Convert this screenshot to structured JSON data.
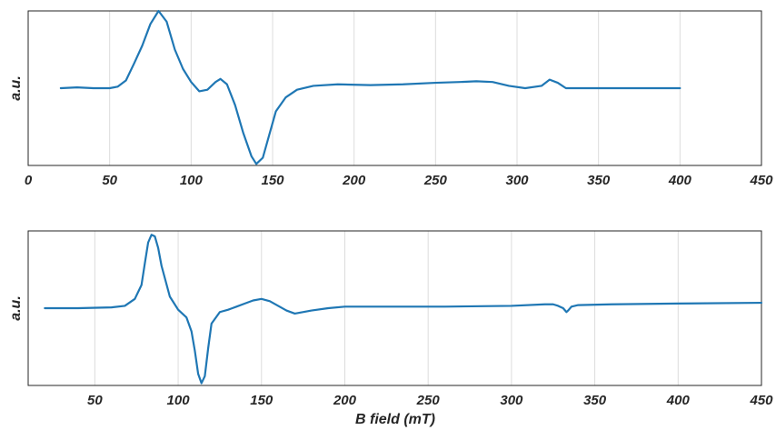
{
  "chart_data": [
    {
      "type": "line",
      "title": "",
      "xlabel": "",
      "ylabel": "a.u.",
      "xlim": [
        0,
        450
      ],
      "ylim": [
        -1.0,
        1.0
      ],
      "xticks": [
        0,
        50,
        100,
        150,
        200,
        250,
        300,
        350,
        400,
        450
      ],
      "xtick_labels": [
        "0",
        "50",
        "100",
        "150",
        "200",
        "250",
        "300",
        "350",
        "400",
        "450"
      ],
      "grid": "vertical",
      "color": "#1f77b4",
      "series": [
        {
          "x": [
            20,
            30,
            40,
            50,
            55,
            60,
            65,
            70,
            75,
            80,
            85,
            90,
            95,
            100,
            105,
            110,
            115,
            118,
            122,
            127,
            132,
            137,
            140,
            144,
            148,
            152,
            158,
            165,
            175,
            190,
            210,
            230,
            250,
            265,
            275,
            285,
            295,
            305,
            315,
            320,
            325,
            330,
            340,
            360,
            380,
            400
          ],
          "y": [
            0.0,
            0.01,
            0.0,
            0.0,
            0.02,
            0.1,
            0.32,
            0.55,
            0.83,
            1.0,
            0.86,
            0.5,
            0.25,
            0.08,
            -0.04,
            -0.02,
            0.08,
            0.12,
            0.05,
            -0.22,
            -0.58,
            -0.88,
            -0.98,
            -0.9,
            -0.6,
            -0.3,
            -0.12,
            -0.02,
            0.03,
            0.05,
            0.04,
            0.05,
            0.07,
            0.08,
            0.09,
            0.08,
            0.03,
            0.0,
            0.03,
            0.11,
            0.07,
            0.0,
            0.0,
            0.0,
            0.0,
            0.0
          ]
        }
      ]
    },
    {
      "type": "line",
      "title": "",
      "xlabel": "B field (mT)",
      "ylabel": "a.u.",
      "xlim": [
        10,
        450
      ],
      "ylim": [
        -1.0,
        1.0
      ],
      "xticks": [
        50,
        100,
        150,
        200,
        250,
        300,
        350,
        400,
        450
      ],
      "xtick_labels": [
        "50",
        "100",
        "150",
        "200",
        "250",
        "300",
        "350",
        "400",
        "450"
      ],
      "grid": "vertical",
      "color": "#1f77b4",
      "series": [
        {
          "x": [
            20,
            40,
            60,
            68,
            74,
            78,
            80,
            82,
            84,
            86,
            88,
            90,
            95,
            100,
            105,
            108,
            110,
            112,
            114,
            116,
            118,
            120,
            125,
            130,
            135,
            140,
            145,
            150,
            155,
            160,
            165,
            170,
            180,
            190,
            200,
            220,
            260,
            300,
            320,
            325,
            328,
            331,
            333,
            334,
            336,
            340,
            360,
            400,
            450
          ],
          "y": [
            0.0,
            0.0,
            0.01,
            0.03,
            0.12,
            0.3,
            0.58,
            0.85,
            0.95,
            0.93,
            0.78,
            0.55,
            0.15,
            -0.02,
            -0.12,
            -0.3,
            -0.55,
            -0.85,
            -0.97,
            -0.88,
            -0.52,
            -0.2,
            -0.05,
            -0.02,
            0.02,
            0.06,
            0.1,
            0.12,
            0.09,
            0.03,
            -0.03,
            -0.07,
            -0.03,
            0.0,
            0.02,
            0.02,
            0.02,
            0.03,
            0.05,
            0.05,
            0.03,
            0.0,
            -0.05,
            -0.03,
            0.02,
            0.04,
            0.05,
            0.06,
            0.07
          ]
        }
      ]
    }
  ]
}
